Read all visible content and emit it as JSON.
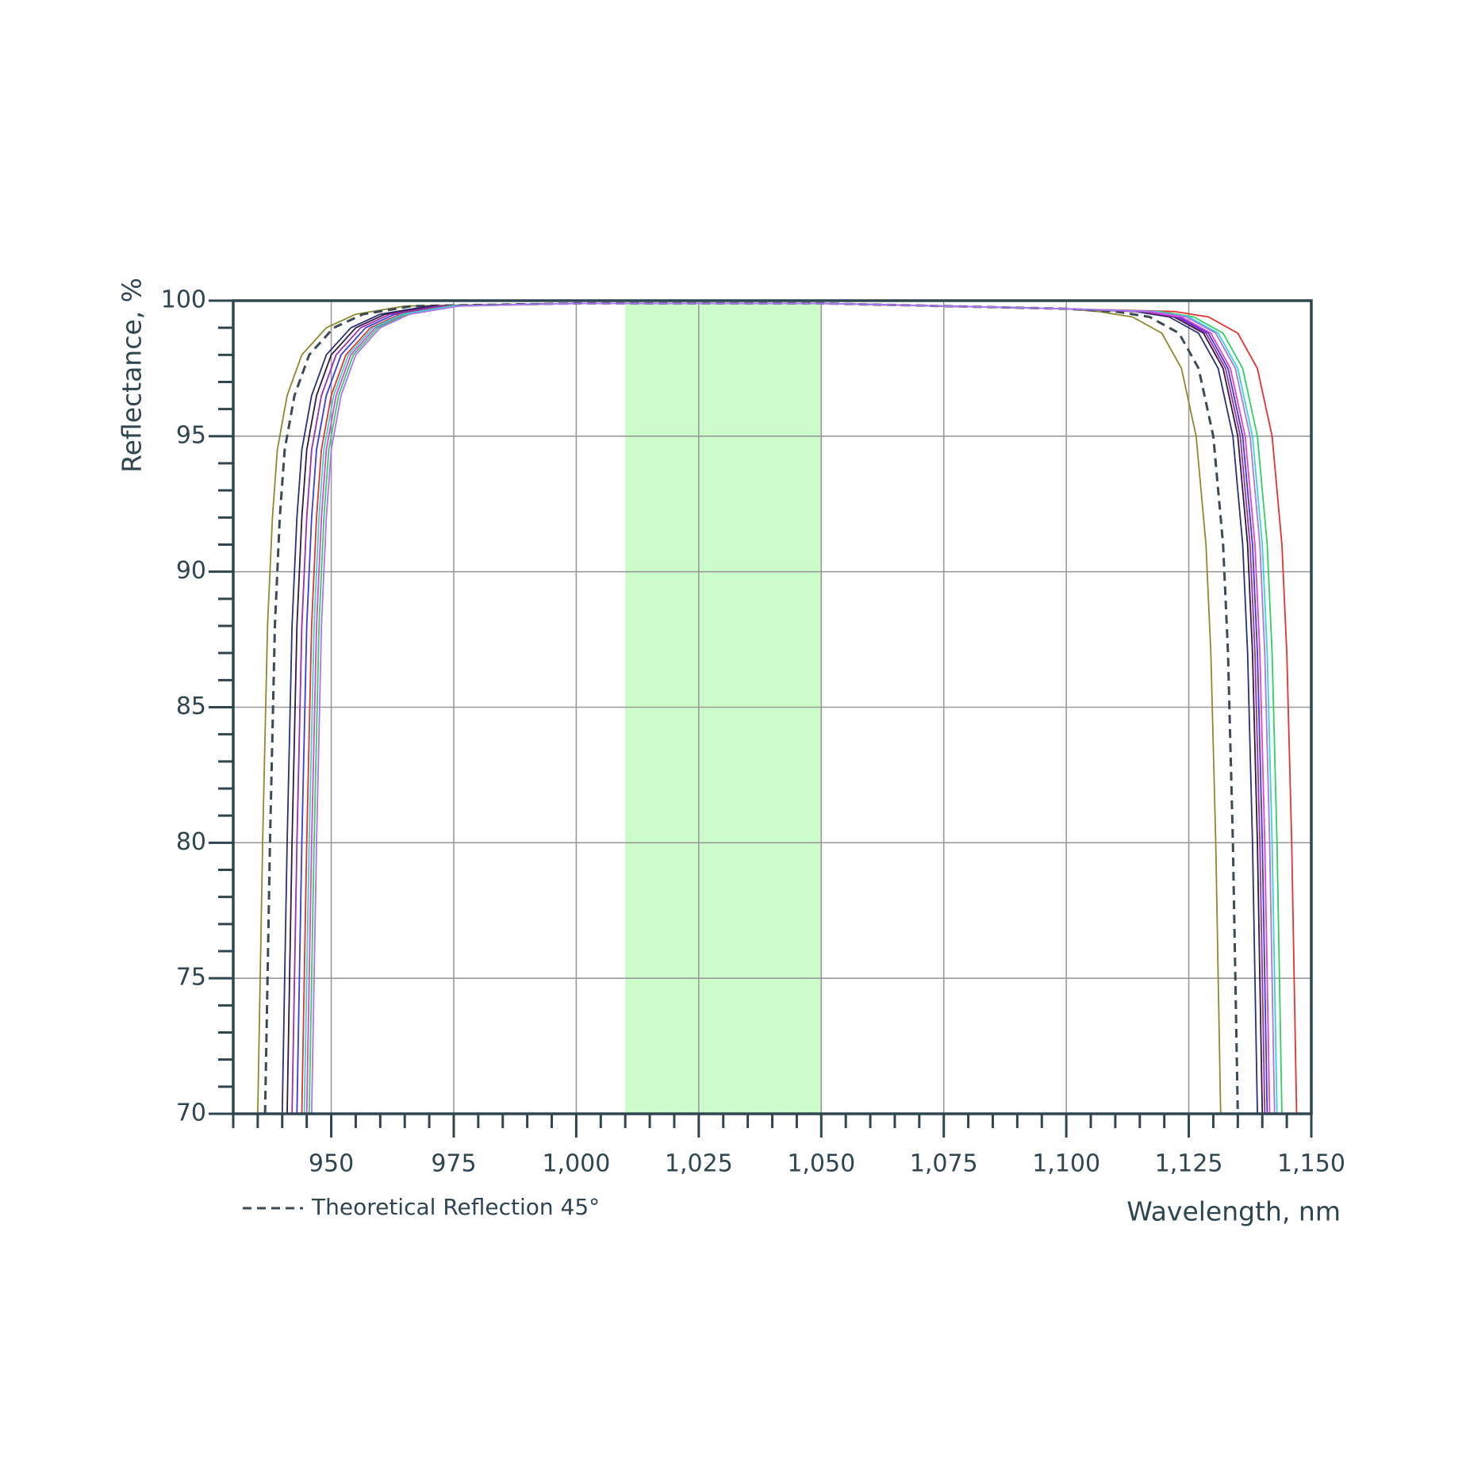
{
  "chart_data": {
    "type": "line",
    "y_label": "Reflectance, %",
    "x_label": "Wavelength, nm",
    "xlim": [
      930,
      1150
    ],
    "ylim": [
      70,
      100
    ],
    "xticks": [
      950,
      975,
      {
        "value": 1000,
        "label": "1,000"
      },
      {
        "value": 1025,
        "label": "1,025"
      },
      {
        "value": 1050,
        "label": "1,050"
      },
      {
        "value": 1075,
        "label": "1,075"
      },
      {
        "value": 1100,
        "label": "1,100"
      },
      {
        "value": 1125,
        "label": "1,125"
      },
      {
        "value": 1150,
        "label": "1,150"
      }
    ],
    "yticks": [
      70,
      75,
      80,
      85,
      90,
      95,
      100
    ],
    "x_minor_step": 5,
    "y_minor_step": 1,
    "grid": true,
    "legend": "bottom-left",
    "highlight_range": [
      1010,
      1050
    ],
    "highlight_color": "#ccfcc9",
    "series": [
      {
        "color": "#8c8a2e",
        "x": [
          935,
          936,
          937,
          938,
          939,
          941,
          944,
          949,
          955,
          965,
          1000,
          1050,
          1100,
          1106.5,
          1113.5,
          1119.5,
          1123.5,
          1126.5,
          1128.5,
          1129.5,
          1130.5,
          1131.5
        ],
        "values": [
          70,
          80,
          88,
          92,
          94.5,
          96.5,
          98,
          99,
          99.5,
          99.8,
          99.9,
          99.9,
          99.7,
          99.6,
          99.4,
          98.8,
          97.5,
          95,
          91,
          87,
          80,
          70
        ]
      },
      {
        "name": "Theoretical Reflection 45°",
        "color": "#3c4a54",
        "dash": true,
        "x": [
          936.5,
          937.5,
          938.5,
          939.5,
          940.5,
          942.5,
          945.5,
          950.5,
          956.5,
          966.5,
          1000,
          1050,
          1100,
          1110,
          1117,
          1123,
          1127,
          1130,
          1132,
          1133,
          1134,
          1135
        ],
        "values": [
          70,
          80,
          88,
          92,
          94.5,
          96.5,
          98,
          99,
          99.5,
          99.8,
          99.9,
          99.9,
          99.7,
          99.6,
          99.4,
          98.8,
          97.5,
          95,
          91,
          87,
          80,
          70
        ]
      },
      {
        "color": "#2a2f78",
        "x": [
          940,
          941,
          942,
          943,
          944,
          946,
          949,
          954,
          960,
          970,
          1000,
          1050,
          1100,
          1114,
          1121,
          1127,
          1131,
          1134,
          1136,
          1137,
          1138,
          1139
        ],
        "values": [
          70,
          80,
          88,
          92,
          94.5,
          96.5,
          98,
          99,
          99.5,
          99.8,
          99.9,
          99.9,
          99.7,
          99.6,
          99.4,
          98.8,
          97.5,
          95,
          91,
          87,
          80,
          70
        ]
      },
      {
        "color": "#301a3c",
        "x": [
          941,
          942,
          943,
          944,
          945,
          947,
          950,
          955,
          961,
          971,
          1000,
          1050,
          1100,
          1115,
          1122,
          1128,
          1132,
          1135,
          1137,
          1138,
          1139,
          1140
        ],
        "values": [
          70,
          80,
          88,
          92,
          94.5,
          96.5,
          98,
          99,
          99.5,
          99.8,
          99.9,
          99.9,
          99.7,
          99.6,
          99.4,
          98.8,
          97.5,
          95,
          91,
          87,
          80,
          70
        ]
      },
      {
        "color": "#3a3ae0",
        "x": [
          943,
          944,
          945,
          946,
          947,
          949,
          952,
          957,
          963,
          973,
          1000,
          1050,
          1100,
          1116,
          1123,
          1129,
          1133,
          1136,
          1138,
          1139,
          1140,
          1141
        ],
        "values": [
          70,
          80,
          88,
          92,
          94.5,
          96.5,
          98,
          99,
          99.5,
          99.8,
          99.9,
          99.9,
          99.7,
          99.6,
          99.4,
          98.8,
          97.5,
          95,
          91,
          87,
          80,
          70
        ]
      },
      {
        "color": "#9a2fb0",
        "x": [
          942,
          943,
          944,
          945,
          946,
          948,
          951,
          956,
          962,
          972,
          1000,
          1050,
          1100,
          1115.5,
          1122.5,
          1128.5,
          1132.5,
          1135.5,
          1137.5,
          1138.5,
          1139.5,
          1140.5
        ],
        "values": [
          70,
          80,
          88,
          92,
          94.5,
          96.5,
          98,
          99,
          99.5,
          99.8,
          99.9,
          99.9,
          99.7,
          99.6,
          99.4,
          98.8,
          97.5,
          95,
          91,
          87,
          80,
          70
        ]
      },
      {
        "color": "#e8302e",
        "x": [
          944,
          945,
          946,
          947,
          948,
          950,
          953,
          958,
          964,
          974,
          1000,
          1050,
          1100,
          1122,
          1129,
          1135,
          1139,
          1142,
          1144,
          1145,
          1146,
          1147
        ],
        "values": [
          70,
          80,
          88,
          92,
          94.5,
          96.5,
          98,
          99,
          99.5,
          99.8,
          99.9,
          99.9,
          99.7,
          99.6,
          99.4,
          98.8,
          97.5,
          95,
          91,
          87,
          80,
          70
        ]
      },
      {
        "color": "#e040d8",
        "x": [
          945,
          946,
          947,
          948,
          949,
          951,
          954,
          959,
          965,
          975,
          1000,
          1050,
          1100,
          1116.5,
          1123.5,
          1129.5,
          1133.5,
          1136.5,
          1138.5,
          1139.5,
          1140.5,
          1141.5
        ],
        "values": [
          70,
          80,
          88,
          92,
          94.5,
          96.5,
          98,
          99,
          99.5,
          99.8,
          99.9,
          99.9,
          99.7,
          99.6,
          99.4,
          98.8,
          97.5,
          95,
          91,
          87,
          80,
          70
        ]
      },
      {
        "color": "#30d060",
        "x": [
          945.5,
          946.5,
          947.5,
          948.5,
          949.5,
          951.5,
          954.5,
          959.5,
          965.5,
          975.5,
          1000,
          1050,
          1100,
          1119,
          1126,
          1132,
          1136,
          1139,
          1141,
          1142,
          1143,
          1144
        ],
        "values": [
          70,
          80,
          88,
          92,
          94.5,
          96.5,
          98,
          99,
          99.5,
          99.8,
          99.9,
          99.9,
          99.7,
          99.6,
          99.4,
          98.8,
          97.5,
          95,
          91,
          87,
          80,
          70
        ]
      },
      {
        "color": "#30d8d0",
        "x": [
          944.5,
          945.5,
          946.5,
          947.5,
          948.5,
          950.5,
          953.5,
          958.5,
          964.5,
          974.5,
          1000,
          1050,
          1100,
          1118,
          1125,
          1131,
          1135,
          1138,
          1140,
          1141,
          1142,
          1143
        ],
        "values": [
          70,
          80,
          88,
          92,
          94.5,
          96.5,
          98,
          99,
          99.5,
          99.8,
          99.9,
          99.9,
          99.7,
          99.6,
          99.4,
          98.8,
          97.5,
          95,
          91,
          87,
          80,
          70
        ]
      },
      {
        "color": "#b070f0",
        "x": [
          946,
          947,
          948,
          949,
          950,
          952,
          955,
          960,
          966,
          976,
          1000,
          1050,
          1100,
          1117.5,
          1124.5,
          1130.5,
          1134.5,
          1137.5,
          1139.5,
          1140.5,
          1141.5,
          1142.5
        ],
        "values": [
          70,
          80,
          88,
          92,
          94.5,
          96.5,
          98,
          99,
          99.5,
          99.8,
          99.9,
          99.9,
          99.7,
          99.6,
          99.4,
          98.8,
          97.5,
          95,
          91,
          87,
          80,
          70
        ]
      }
    ]
  }
}
